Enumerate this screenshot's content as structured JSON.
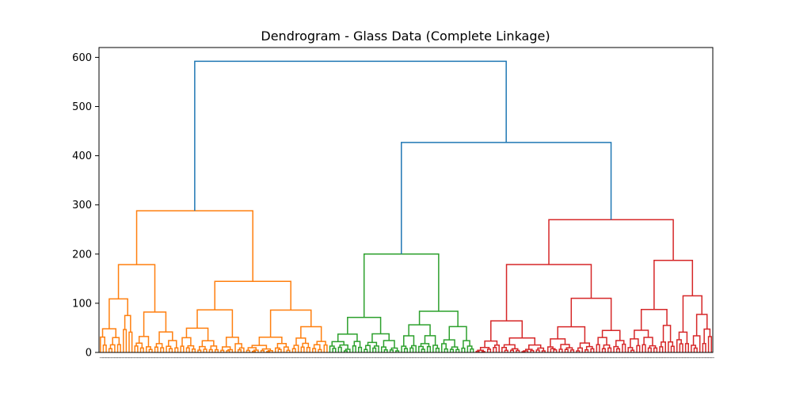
{
  "chart_data": {
    "type": "dendrogram",
    "title": "Dendrogram - Glass Data (Complete Linkage)",
    "xlabel": "",
    "ylabel": "",
    "ylim": [
      0,
      620
    ],
    "yticks": [
      0,
      100,
      200,
      300,
      400,
      500,
      600
    ],
    "grid": false,
    "legend": "none",
    "leaf_count": 214,
    "colors": {
      "above_threshold": "#1f77b4",
      "cluster_1": "#ff7f0e",
      "cluster_2": "#2ca02c",
      "cluster_3": "#d62728"
    },
    "clusters": [
      {
        "color_key": "cluster_1",
        "leaves": 80
      },
      {
        "color_key": "cluster_2",
        "leaves": 51
      },
      {
        "color_key": "cluster_3",
        "leaves": 83
      }
    ],
    "top_merges": [
      {
        "height": 592,
        "joins": "cluster_1 + (cluster_2 + cluster_3)"
      },
      {
        "height": 427,
        "joins": "cluster_2 + cluster_3"
      },
      {
        "height": 288,
        "joins": "cluster_1 root"
      },
      {
        "height": 270,
        "joins": "cluster_3 root"
      },
      {
        "height": 200,
        "joins": "cluster_2 root"
      }
    ]
  }
}
